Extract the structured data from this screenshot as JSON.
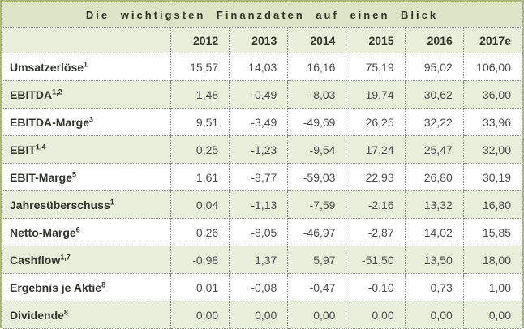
{
  "title": "Die wichtigsten Finanzdaten auf einen Blick",
  "colors": {
    "outer_border": "#a9b77d",
    "title_bg": "#dce4c5",
    "band_bg": "#e9eeda",
    "row_bg": "#ffffff",
    "heading_text": "#33372c",
    "value_text": "#4d4d4d",
    "grid_dotted": "#8f8f8f"
  },
  "chart_data": {
    "type": "table",
    "title": "Die wichtigsten Finanzdaten auf einen Blick",
    "columns": [
      "2012",
      "2013",
      "2014",
      "2015",
      "2016",
      "2017e"
    ],
    "rows": [
      {
        "label": "Umsatzerlöse",
        "footnote": "1",
        "values": [
          "15,57",
          "14,03",
          "16,16",
          "75,19",
          "95,02",
          "106,00"
        ]
      },
      {
        "label": "EBITDA",
        "footnote": "1,2",
        "values": [
          "1,48",
          "-0,49",
          "-8,03",
          "19,74",
          "30,62",
          "36,00"
        ]
      },
      {
        "label": "EBITDA-Marge",
        "footnote": "3",
        "values": [
          "9,51",
          "-3,49",
          "-49,69",
          "26,25",
          "32,22",
          "33,96"
        ]
      },
      {
        "label": "EBIT",
        "footnote": "1,4",
        "values": [
          "0,25",
          "-1,23",
          "-9,54",
          "17,24",
          "25,47",
          "32,00"
        ]
      },
      {
        "label": "EBIT-Marge",
        "footnote": "5",
        "values": [
          "1,61",
          "-8,77",
          "-59,03",
          "22,93",
          "26,80",
          "30,19"
        ]
      },
      {
        "label": "Jahresüberschuss",
        "footnote": "1",
        "values": [
          "0,04",
          "-1,13",
          "-7,59",
          "-2,16",
          "13,32",
          "16,80"
        ]
      },
      {
        "label": "Netto-Marge",
        "footnote": "6",
        "values": [
          "0,26",
          "-8,05",
          "-46,97",
          "-2,87",
          "14,02",
          "15,85"
        ]
      },
      {
        "label": "Cashflow",
        "footnote": "1,7",
        "values": [
          "-0,98",
          "1,37",
          "5,97",
          "-51,50",
          "13,50",
          "18,00"
        ]
      },
      {
        "label": "Ergebnis je Aktie",
        "footnote": "8",
        "values": [
          "0,01",
          "-0,08",
          "-0,47",
          "-0.10",
          "0,73",
          "1,00"
        ]
      },
      {
        "label": "Dividende",
        "footnote": "8",
        "values": [
          "0,00",
          "0,00",
          "0,00",
          "0,00",
          "0,00",
          "0,00"
        ]
      }
    ]
  }
}
